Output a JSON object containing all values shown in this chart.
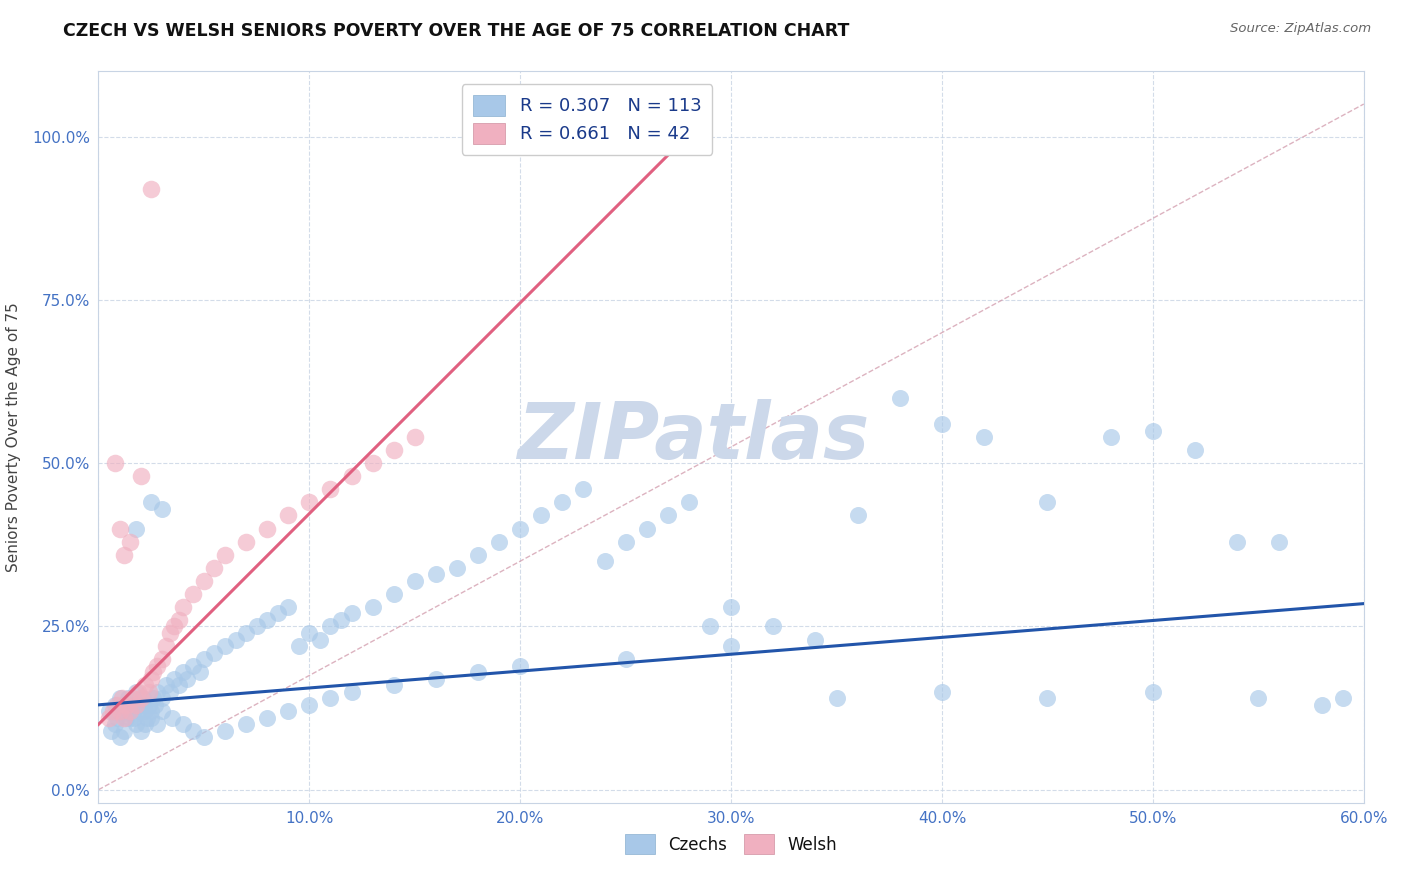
{
  "title": "CZECH VS WELSH SENIORS POVERTY OVER THE AGE OF 75 CORRELATION CHART",
  "source": "Source: ZipAtlas.com",
  "xlim": [
    0.0,
    0.6
  ],
  "ylim": [
    -0.02,
    1.1
  ],
  "xticks": [
    0.0,
    0.1,
    0.2,
    0.3,
    0.4,
    0.5,
    0.6
  ],
  "yticks": [
    0.0,
    0.25,
    0.5,
    0.75,
    1.0
  ],
  "xticklabels": [
    "0.0%",
    "10.0%",
    "20.0%",
    "30.0%",
    "40.0%",
    "50.0%",
    "60.0%"
  ],
  "yticklabels": [
    "0.0%",
    "25.0%",
    "50.0%",
    "75.0%",
    "100.0%"
  ],
  "czechs_color": "#a8c8e8",
  "welsh_color": "#f0b0c0",
  "trend_czech_color": "#2255aa",
  "trend_welsh_color": "#e06080",
  "diag_color": "#d0b0b8",
  "watermark": "ZIPatlas",
  "watermark_color": "#ccd8ea",
  "ylabel": "Seniors Poverty Over the Age of 75",
  "legend_r_czech": "R = 0.307",
  "legend_n_czech": "N = 113",
  "legend_r_welsh": "R = 0.661",
  "legend_n_welsh": "N = 42",
  "trend_czech_x0": 0.0,
  "trend_czech_y0": 0.13,
  "trend_czech_x1": 0.6,
  "trend_czech_y1": 0.285,
  "trend_welsh_x0": 0.0,
  "trend_welsh_y0": 0.1,
  "trend_welsh_x1": 0.285,
  "trend_welsh_y1": 1.02,
  "czechs_x": [
    0.005,
    0.008,
    0.009,
    0.01,
    0.011,
    0.012,
    0.013,
    0.014,
    0.015,
    0.016,
    0.017,
    0.018,
    0.019,
    0.02,
    0.021,
    0.022,
    0.023,
    0.024,
    0.025,
    0.026,
    0.027,
    0.028,
    0.03,
    0.032,
    0.034,
    0.036,
    0.038,
    0.04,
    0.042,
    0.045,
    0.048,
    0.05,
    0.055,
    0.06,
    0.065,
    0.07,
    0.075,
    0.08,
    0.085,
    0.09,
    0.095,
    0.1,
    0.105,
    0.11,
    0.115,
    0.12,
    0.13,
    0.14,
    0.15,
    0.16,
    0.17,
    0.18,
    0.19,
    0.2,
    0.21,
    0.22,
    0.23,
    0.24,
    0.25,
    0.26,
    0.27,
    0.28,
    0.29,
    0.3,
    0.32,
    0.34,
    0.36,
    0.38,
    0.4,
    0.42,
    0.45,
    0.48,
    0.5,
    0.52,
    0.54,
    0.56,
    0.006,
    0.008,
    0.01,
    0.012,
    0.015,
    0.018,
    0.02,
    0.022,
    0.025,
    0.028,
    0.03,
    0.035,
    0.04,
    0.045,
    0.05,
    0.06,
    0.07,
    0.08,
    0.09,
    0.1,
    0.11,
    0.12,
    0.14,
    0.16,
    0.18,
    0.2,
    0.25,
    0.3,
    0.35,
    0.4,
    0.45,
    0.5,
    0.55,
    0.58,
    0.59,
    0.018,
    0.025,
    0.03
  ],
  "czechs_y": [
    0.12,
    0.13,
    0.11,
    0.14,
    0.12,
    0.13,
    0.11,
    0.14,
    0.12,
    0.13,
    0.11,
    0.15,
    0.12,
    0.13,
    0.14,
    0.12,
    0.11,
    0.13,
    0.12,
    0.14,
    0.13,
    0.15,
    0.14,
    0.16,
    0.15,
    0.17,
    0.16,
    0.18,
    0.17,
    0.19,
    0.18,
    0.2,
    0.21,
    0.22,
    0.23,
    0.24,
    0.25,
    0.26,
    0.27,
    0.28,
    0.22,
    0.24,
    0.23,
    0.25,
    0.26,
    0.27,
    0.28,
    0.3,
    0.32,
    0.33,
    0.34,
    0.36,
    0.38,
    0.4,
    0.42,
    0.44,
    0.46,
    0.35,
    0.38,
    0.4,
    0.42,
    0.44,
    0.25,
    0.28,
    0.25,
    0.23,
    0.42,
    0.6,
    0.56,
    0.54,
    0.44,
    0.54,
    0.55,
    0.52,
    0.38,
    0.38,
    0.09,
    0.1,
    0.08,
    0.09,
    0.11,
    0.1,
    0.09,
    0.1,
    0.11,
    0.1,
    0.12,
    0.11,
    0.1,
    0.09,
    0.08,
    0.09,
    0.1,
    0.11,
    0.12,
    0.13,
    0.14,
    0.15,
    0.16,
    0.17,
    0.18,
    0.19,
    0.2,
    0.22,
    0.14,
    0.15,
    0.14,
    0.15,
    0.14,
    0.13,
    0.14,
    0.4,
    0.44,
    0.43
  ],
  "welsh_x": [
    0.005,
    0.007,
    0.009,
    0.01,
    0.011,
    0.012,
    0.013,
    0.015,
    0.016,
    0.018,
    0.019,
    0.02,
    0.022,
    0.024,
    0.025,
    0.026,
    0.028,
    0.03,
    0.032,
    0.034,
    0.036,
    0.038,
    0.04,
    0.045,
    0.05,
    0.055,
    0.06,
    0.07,
    0.08,
    0.09,
    0.1,
    0.11,
    0.12,
    0.13,
    0.14,
    0.15,
    0.008,
    0.01,
    0.012,
    0.015,
    0.02,
    0.025
  ],
  "welsh_y": [
    0.11,
    0.12,
    0.13,
    0.12,
    0.14,
    0.11,
    0.13,
    0.12,
    0.14,
    0.13,
    0.15,
    0.14,
    0.16,
    0.15,
    0.17,
    0.18,
    0.19,
    0.2,
    0.22,
    0.24,
    0.25,
    0.26,
    0.28,
    0.3,
    0.32,
    0.34,
    0.36,
    0.38,
    0.4,
    0.42,
    0.44,
    0.46,
    0.48,
    0.5,
    0.52,
    0.54,
    0.5,
    0.4,
    0.36,
    0.38,
    0.48,
    0.92
  ]
}
